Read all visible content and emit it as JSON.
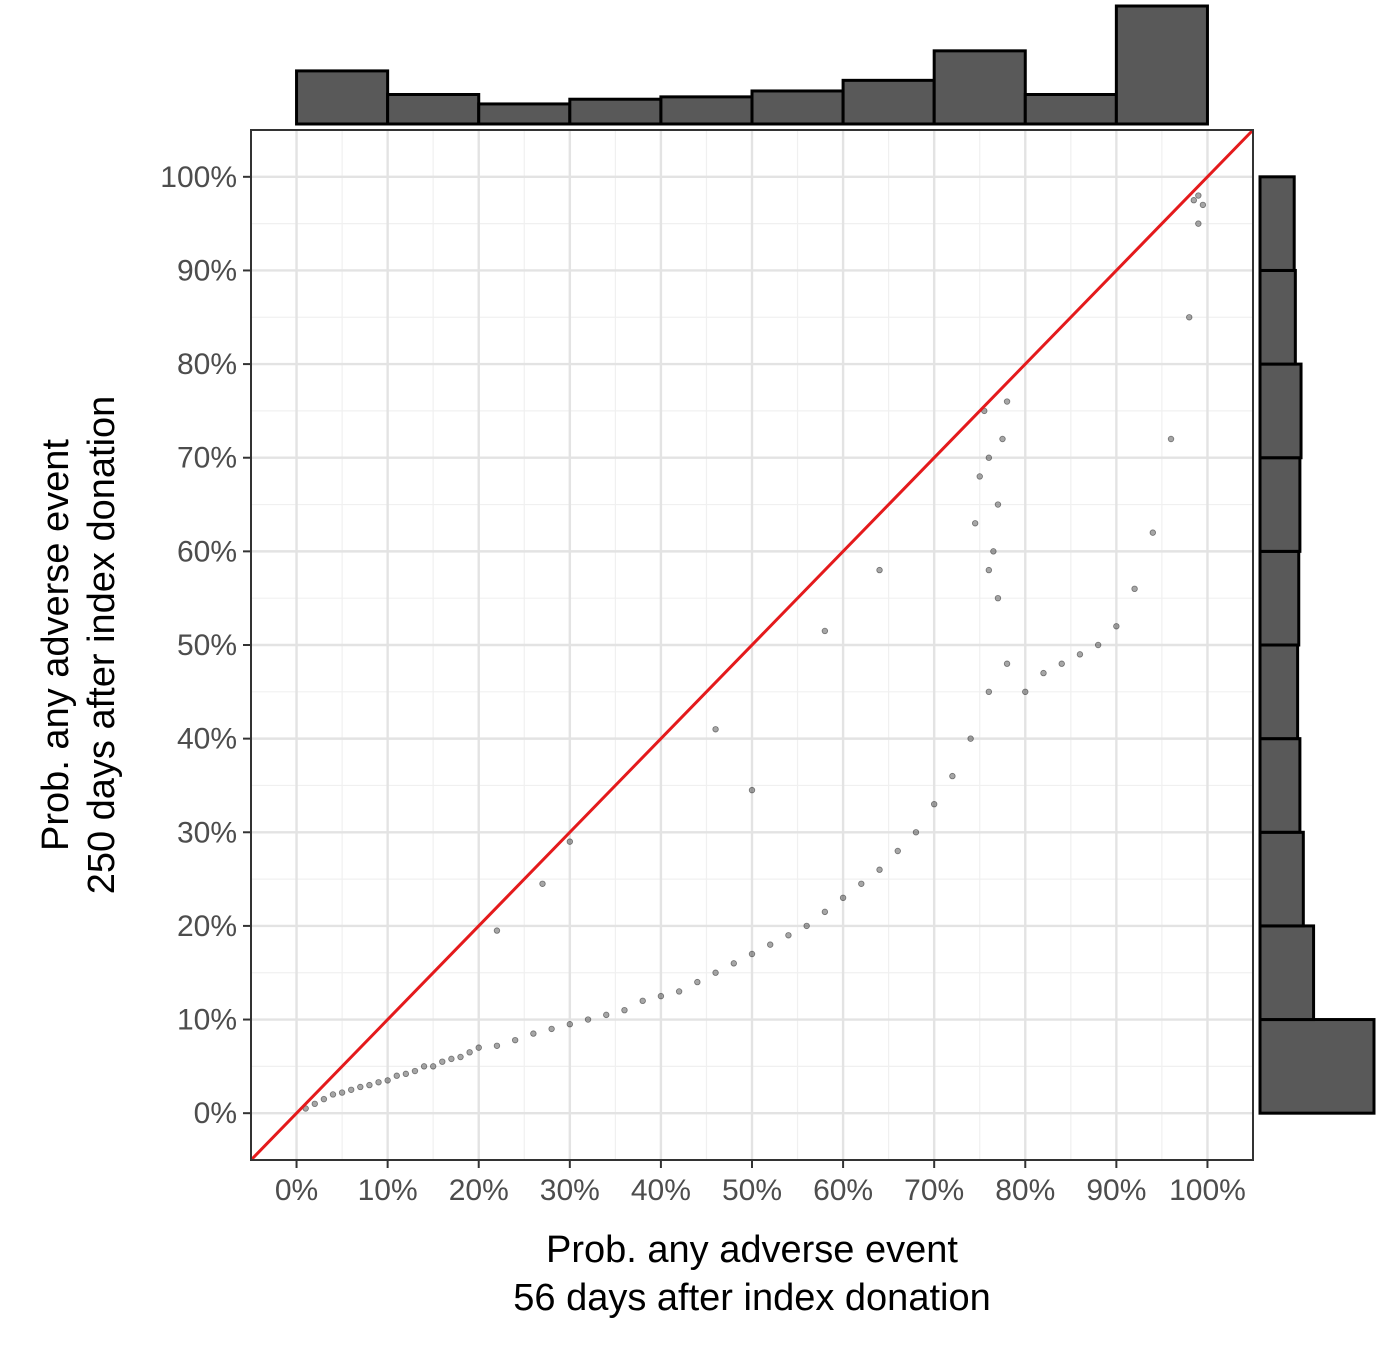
{
  "chart_data": {
    "type": "scatter",
    "title": "",
    "xlabel": [
      "Prob. any adverse event",
      "56 days after index donation"
    ],
    "ylabel": [
      "Prob. any adverse event",
      "250 days after index donation"
    ],
    "xlim": [
      -0.05,
      1.05
    ],
    "ylim": [
      -0.05,
      1.05
    ],
    "x_ticks": [
      0,
      0.1,
      0.2,
      0.3,
      0.4,
      0.5,
      0.6,
      0.7,
      0.8,
      0.9,
      1.0
    ],
    "x_tick_labels": [
      "0%",
      "10%",
      "20%",
      "30%",
      "40%",
      "50%",
      "60%",
      "70%",
      "80%",
      "90%",
      "100%"
    ],
    "y_ticks": [
      0,
      0.1,
      0.2,
      0.3,
      0.4,
      0.5,
      0.6,
      0.7,
      0.8,
      0.9,
      1.0
    ],
    "y_tick_labels": [
      "0%",
      "10%",
      "20%",
      "30%",
      "40%",
      "50%",
      "60%",
      "70%",
      "80%",
      "90%",
      "100%"
    ],
    "grid": true,
    "reference_line": {
      "from": [
        -0.05,
        -0.05
      ],
      "to": [
        1.05,
        1.05
      ],
      "color": "#e41a1c"
    },
    "point_color": "#000000",
    "point_opacity": 0.35,
    "series": [
      {
        "type": "scatter",
        "points": [
          [
            0.01,
            0.005
          ],
          [
            0.02,
            0.01
          ],
          [
            0.03,
            0.015
          ],
          [
            0.04,
            0.02
          ],
          [
            0.05,
            0.022
          ],
          [
            0.06,
            0.025
          ],
          [
            0.07,
            0.028
          ],
          [
            0.08,
            0.03
          ],
          [
            0.09,
            0.033
          ],
          [
            0.1,
            0.035
          ],
          [
            0.11,
            0.04
          ],
          [
            0.12,
            0.042
          ],
          [
            0.13,
            0.045
          ],
          [
            0.14,
            0.05
          ],
          [
            0.15,
            0.05
          ],
          [
            0.16,
            0.055
          ],
          [
            0.17,
            0.058
          ],
          [
            0.18,
            0.06
          ],
          [
            0.19,
            0.065
          ],
          [
            0.2,
            0.07
          ],
          [
            0.22,
            0.072
          ],
          [
            0.24,
            0.078
          ],
          [
            0.26,
            0.085
          ],
          [
            0.28,
            0.09
          ],
          [
            0.3,
            0.095
          ],
          [
            0.32,
            0.1
          ],
          [
            0.34,
            0.105
          ],
          [
            0.36,
            0.11
          ],
          [
            0.38,
            0.12
          ],
          [
            0.4,
            0.125
          ],
          [
            0.42,
            0.13
          ],
          [
            0.44,
            0.14
          ],
          [
            0.46,
            0.15
          ],
          [
            0.48,
            0.16
          ],
          [
            0.5,
            0.17
          ],
          [
            0.52,
            0.18
          ],
          [
            0.54,
            0.19
          ],
          [
            0.56,
            0.2
          ],
          [
            0.58,
            0.215
          ],
          [
            0.6,
            0.23
          ],
          [
            0.62,
            0.245
          ],
          [
            0.64,
            0.26
          ],
          [
            0.66,
            0.28
          ],
          [
            0.68,
            0.3
          ],
          [
            0.7,
            0.33
          ],
          [
            0.72,
            0.36
          ],
          [
            0.74,
            0.4
          ],
          [
            0.76,
            0.45
          ],
          [
            0.78,
            0.48
          ],
          [
            0.8,
            0.45
          ],
          [
            0.82,
            0.47
          ],
          [
            0.84,
            0.48
          ],
          [
            0.86,
            0.49
          ],
          [
            0.88,
            0.5
          ],
          [
            0.9,
            0.52
          ],
          [
            0.92,
            0.56
          ],
          [
            0.94,
            0.62
          ],
          [
            0.96,
            0.72
          ],
          [
            0.98,
            0.85
          ],
          [
            0.99,
            0.95
          ],
          [
            0.755,
            0.75
          ],
          [
            0.76,
            0.7
          ],
          [
            0.77,
            0.65
          ],
          [
            0.765,
            0.6
          ],
          [
            0.77,
            0.55
          ],
          [
            0.775,
            0.72
          ],
          [
            0.78,
            0.76
          ],
          [
            0.75,
            0.68
          ],
          [
            0.745,
            0.63
          ],
          [
            0.76,
            0.58
          ],
          [
            0.3,
            0.29
          ],
          [
            0.27,
            0.245
          ],
          [
            0.22,
            0.195
          ],
          [
            0.64,
            0.58
          ],
          [
            0.58,
            0.515
          ],
          [
            0.46,
            0.41
          ],
          [
            0.5,
            0.345
          ],
          [
            0.985,
            0.975
          ],
          [
            0.99,
            0.98
          ],
          [
            0.995,
            0.97
          ]
        ]
      }
    ],
    "top_histogram": {
      "bin_edges": [
        0,
        0.1,
        0.2,
        0.3,
        0.4,
        0.5,
        0.6,
        0.7,
        0.8,
        0.9,
        1.0
      ],
      "heights": [
        0.45,
        0.25,
        0.17,
        0.21,
        0.23,
        0.28,
        0.37,
        0.62,
        0.25,
        1.0
      ]
    },
    "right_histogram": {
      "bin_edges": [
        0,
        0.1,
        0.2,
        0.3,
        0.4,
        0.5,
        0.6,
        0.7,
        0.8,
        0.9,
        1.0
      ],
      "heights": [
        1.0,
        0.47,
        0.38,
        0.35,
        0.33,
        0.34,
        0.35,
        0.36,
        0.31,
        0.3
      ]
    },
    "histogram_color": "#595959"
  }
}
